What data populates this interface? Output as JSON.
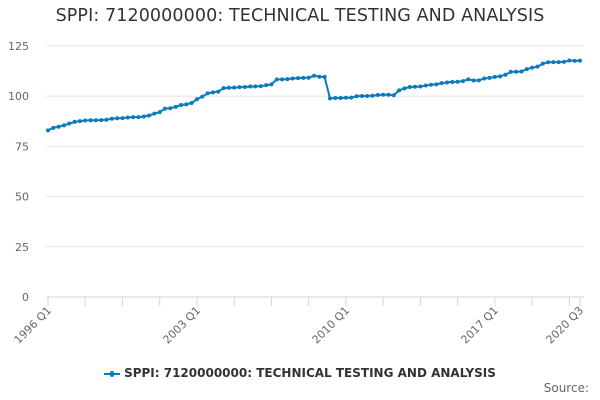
{
  "title": "SPPI: 7120000000: TECHNICAL TESTING AND ANALYSIS",
  "legend": {
    "label": "SPPI: 7120000000: TECHNICAL TESTING AND ANALYSIS",
    "color": "#0a7bbd"
  },
  "source_label": "Source:",
  "colors": {
    "series": "#0a7bbd",
    "grid": "#e6e6e6",
    "axis": "#ccd6eb",
    "text": "#333333",
    "tick_text": "#666666"
  },
  "chart_data": {
    "type": "line",
    "title": "SPPI: 7120000000: TECHNICAL TESTING AND ANALYSIS",
    "xlabel": "",
    "ylabel": "",
    "ylim": [
      0,
      125
    ],
    "yticks": [
      0,
      25,
      50,
      75,
      100,
      125
    ],
    "xtick_labels": [
      "1996 Q1",
      "2003 Q1",
      "2010 Q1",
      "2017 Q1",
      "2020 Q3"
    ],
    "grid": true,
    "legend_position": "bottom",
    "x_start": "1996 Q1",
    "x_end": "2020 Q3",
    "frequency": "quarterly",
    "series": [
      {
        "name": "SPPI: 7120000000: TECHNICAL TESTING AND ANALYSIS",
        "values": [
          83.0,
          84.2,
          84.8,
          85.5,
          86.4,
          87.2,
          87.6,
          87.9,
          88.0,
          88.0,
          88.1,
          88.3,
          88.8,
          89.0,
          89.1,
          89.4,
          89.6,
          89.6,
          89.9,
          90.4,
          91.3,
          92.1,
          93.8,
          94.0,
          94.7,
          95.6,
          95.9,
          96.6,
          98.5,
          99.8,
          101.4,
          101.9,
          102.3,
          104.0,
          104.2,
          104.3,
          104.5,
          104.6,
          104.8,
          104.9,
          105.0,
          105.5,
          105.9,
          108.3,
          108.4,
          108.5,
          108.8,
          109.0,
          109.1,
          109.2,
          110.2,
          109.7,
          109.6,
          98.9,
          99.1,
          99.1,
          99.2,
          99.3,
          100.0,
          100.1,
          100.1,
          100.2,
          100.6,
          100.7,
          100.7,
          100.5,
          102.9,
          103.9,
          104.6,
          104.7,
          104.8,
          105.3,
          105.7,
          105.9,
          106.5,
          106.8,
          107.1,
          107.2,
          107.5,
          108.4,
          107.8,
          107.9,
          108.8,
          109.1,
          109.6,
          109.9,
          110.7,
          112.1,
          112.2,
          112.3,
          113.5,
          114.2,
          114.7,
          116.2,
          116.9,
          117.0,
          117.0,
          117.1,
          117.8,
          117.6,
          117.7
        ]
      }
    ]
  }
}
